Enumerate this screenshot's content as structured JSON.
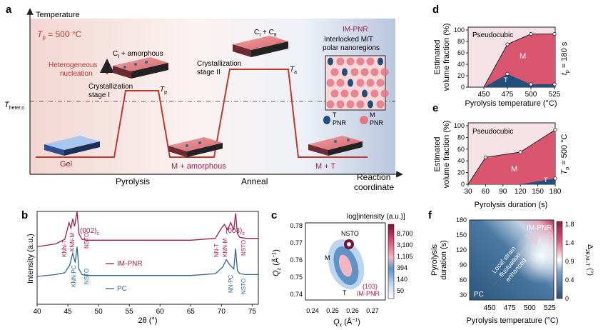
{
  "panel_labels": {
    "a": "a",
    "b": "b",
    "c": "c",
    "d": "d",
    "e": "e",
    "f": "f"
  },
  "panel_a": {
    "y_axis_label": "Temperature",
    "x_axis_label": "Reaction",
    "x_axis_label_2": "coordinate",
    "tp_label": "T",
    "tp_sub": "p",
    "tp_value": " = 500 °C",
    "theter_label": "T",
    "theter_sub": "heter,n",
    "phase_pyrolysis": "Pyrolysis",
    "phase_anneal": "Anneal",
    "gel": "Gel",
    "m_amorphous": "M + amorphous",
    "m_t": "M + T",
    "het_nucleation_1": "Heterogeneous",
    "het_nucleation_2": "nucleation",
    "ci_amorph_pre": "C",
    "ci_amorph_sub": "I",
    "ci_amorph_post": " + amorphous",
    "cryst1_1": "Crystallization",
    "cryst1_2": "stage I",
    "tp_marker": "T",
    "tp_marker_sub": "p",
    "cryst2_1": "Crystallization",
    "cryst2_2": "stage II",
    "ta_marker": "T",
    "ta_marker_sub": "a",
    "cicii_1": "C",
    "cicii_sub1": "I",
    "cicii_2": " + C",
    "cicii_sub2": "II",
    "impnr_title": "IM-PNR",
    "impnr_desc1": "Interlocked M/T",
    "impnr_desc2": "polar nanoregions",
    "legend_t1": "T",
    "legend_t2": "PNR",
    "legend_m1": "M",
    "legend_m2": "PNR"
  },
  "panel_b": {
    "xlabel": "2θ (°)",
    "ylabel": "Intensity (a.u.)",
    "series_impnr": "IM-PNR",
    "series_pc": "PC",
    "ann_002": "(002)",
    "ann_002_sub": "c",
    "ann_003": "(003)",
    "ann_003_sub": "c",
    "lbl_knnt": "KNN-T",
    "lbl_knnm": "KNN-M",
    "lbl_nsto": "NSTO",
    "lbl_knnpc": "KNN-PC",
    "lbl_nnm": "NN-M",
    "lbl_nnt": "NN-T",
    "lbl_nstor": "NSTO",
    "lbl_knnm2": "KNN-M",
    "lbl_nnpc": "NN-PC"
  },
  "panel_c": {
    "xlabel": "Q",
    "xlabel_sub": "x",
    "xlabel_unit": " (Å",
    "ylabel": "Q",
    "ylabel_sub": "z",
    "ylabel_unit": " (Å",
    "colorbar_title": "log[intensity (a.u.)]",
    "peak_nsto": "NSTO",
    "peak_m": "M",
    "peak_t": "T",
    "refl_1": "(103)",
    "refl_2": "IM-PNR",
    "colorbar_ticks": [
      "8,700",
      "3,100",
      "1,105",
      "394",
      "140",
      "50"
    ]
  },
  "panel_d": {
    "title_region": "Pseudocubic",
    "ylabel_1": "Estimated",
    "ylabel_2": "volume fraction (%)",
    "xlabel": "Pyrolysis temperature (°C)",
    "side_label": "t",
    "side_sub": "p",
    "side_value": " = 180 s",
    "region_m": "M",
    "region_t": "T"
  },
  "panel_e": {
    "title_region": "Pseudocubic",
    "ylabel_1": "Estimated",
    "ylabel_2": "volume fraction (%)",
    "xlabel": "Pyrolysis duration (s)",
    "side_label": "T",
    "side_sub": "p",
    "side_value": " = 500 °C",
    "region_m": "M",
    "region_t": "T"
  },
  "panel_f": {
    "xlabel": "Pyrolysis temperature (°C)",
    "ylabel_1": "Pyrolysis",
    "ylabel_2": "duration (s)",
    "label_impnr": "IM-PNR",
    "label_pc": "PC",
    "arrow_1": "Local strain",
    "arrow_2": "fluctuation",
    "arrow_3": "enhanced",
    "colorbar_label": "Δ",
    "colorbar_sub": "2θ,M–T",
    "colorbar_unit": " (°)",
    "colorbar_ticks": [
      "1.8",
      "1.4",
      "0.9",
      "0.4",
      "0"
    ]
  },
  "colors": {
    "im_pnr": "#a41c4e",
    "pc": "#2f6a8e",
    "m_fill": "#d9566e",
    "t_fill": "#1f4f7a",
    "pseudo_fill": "#f6e3e7",
    "profile_red": "#c0392b"
  },
  "chart_data": [
    {
      "id": "b",
      "type": "line",
      "title": "",
      "xlabel": "2θ (°)",
      "ylabel": "Intensity (a.u.)",
      "xlim": [
        40,
        76
      ],
      "xticks": [
        40,
        45,
        50,
        55,
        60,
        65,
        70,
        75
      ],
      "series": [
        {
          "name": "IM-PNR",
          "x": [
            40,
            43,
            44.5,
            45.2,
            45.5,
            45.8,
            46.1,
            46.5,
            46.8,
            47.3,
            48,
            55,
            65,
            69,
            70,
            70.5,
            71,
            71.5,
            72,
            72.3,
            72.6,
            73,
            74,
            76
          ],
          "y": [
            0.62,
            0.65,
            0.7,
            0.88,
            0.82,
            0.92,
            0.84,
            1.0,
            0.76,
            0.7,
            0.69,
            0.69,
            0.69,
            0.71,
            0.82,
            0.86,
            0.8,
            0.88,
            0.8,
            0.98,
            0.76,
            0.72,
            0.71,
            0.71
          ]
        },
        {
          "name": "PC",
          "x": [
            40,
            43,
            44.5,
            45.3,
            45.8,
            46.2,
            46.5,
            46.8,
            47.3,
            48,
            55,
            65,
            69,
            70.2,
            70.8,
            71.4,
            72,
            72.3,
            72.6,
            73,
            74,
            76
          ],
          "y": [
            0.3,
            0.32,
            0.34,
            0.42,
            0.55,
            0.45,
            0.62,
            0.38,
            0.32,
            0.31,
            0.31,
            0.31,
            0.33,
            0.4,
            0.48,
            0.42,
            0.38,
            0.6,
            0.36,
            0.33,
            0.32,
            0.32
          ]
        }
      ]
    },
    {
      "id": "d",
      "type": "area",
      "xlabel": "Pyrolysis temperature (°C)",
      "ylabel": "Estimated volume fraction (%)",
      "categories": [
        450,
        475,
        500,
        525
      ],
      "ylim": [
        0,
        100
      ],
      "yticks": [
        0,
        20,
        40,
        60,
        80,
        100
      ],
      "series": [
        {
          "name": "T",
          "values": [
            0,
            23,
            5,
            5
          ]
        },
        {
          "name": "M+T",
          "values": [
            0,
            75,
            93,
            93
          ]
        }
      ]
    },
    {
      "id": "e",
      "type": "area",
      "xlabel": "Pyrolysis duration (s)",
      "ylabel": "Estimated volume fraction (%)",
      "categories": [
        30,
        60,
        90,
        120,
        150,
        180
      ],
      "ylim": [
        0,
        100
      ],
      "yticks": [
        0,
        20,
        40,
        60,
        80,
        100
      ],
      "series": [
        {
          "name": "T",
          "x": [
            30,
            60,
            120,
            180
          ],
          "values": [
            0,
            0,
            0,
            10
          ]
        },
        {
          "name": "M+T",
          "x": [
            30,
            60,
            120,
            180
          ],
          "values": [
            0,
            46,
            55,
            93
          ]
        }
      ]
    },
    {
      "id": "f",
      "type": "heatmap",
      "xlabel": "Pyrolysis temperature (°C)",
      "ylabel": "Pyrolysis duration (s)",
      "xlim": [
        425,
        530
      ],
      "ylim": [
        20,
        180
      ],
      "xticks": [
        450,
        475,
        500,
        525
      ],
      "yticks": [
        30,
        60,
        90,
        120,
        150,
        180
      ],
      "colorbar_range": [
        0,
        1.8
      ]
    }
  ]
}
